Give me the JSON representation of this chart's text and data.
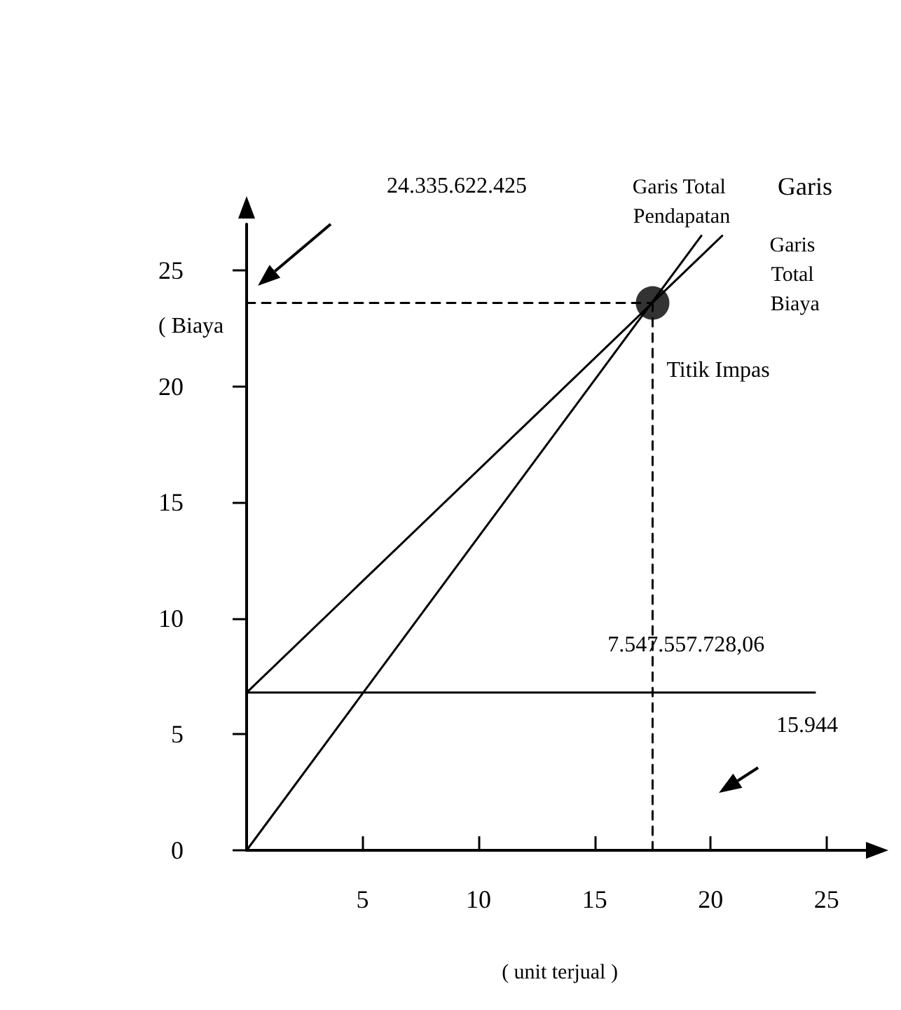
{
  "chart_data": {
    "type": "line",
    "xlabel": "( unit terjual )",
    "ylabel": "( Biaya",
    "xlim": [
      0,
      27
    ],
    "ylim": [
      0,
      27
    ],
    "xticks": [
      5,
      10,
      15,
      20,
      25
    ],
    "yticks": [
      0,
      5,
      10,
      15,
      20,
      25
    ],
    "grid": false,
    "marker": "none",
    "line_style": "solid",
    "series": [
      {
        "name": "Garis Total Pendapatan",
        "color": "#000000",
        "x": [
          0,
          19.6
        ],
        "values": [
          0,
          26.5
        ]
      },
      {
        "name": "Garis Total Biaya",
        "color": "#000000",
        "x": [
          0,
          20.5
        ],
        "values": [
          6.8,
          26.5
        ]
      },
      {
        "color": "#000000",
        "x": [
          0,
          24.5
        ],
        "values": [
          6.8,
          6.8
        ]
      },
      {
        "color": "#000000",
        "x": [
          0,
          17.5
        ],
        "values": [
          23.6,
          23.6
        ],
        "line_style": "dashed"
      },
      {
        "color": "#000000",
        "x": [
          17.5,
          17.5
        ],
        "values": [
          0,
          23.6
        ],
        "line_style": "dashed"
      },
      {
        "type": "scatter",
        "color": "#000000",
        "x": [
          17.5
        ],
        "values": [
          23.6
        ],
        "marker": "circle"
      }
    ],
    "annotations": [
      "Garis",
      "24.335.622.425",
      {
        "text": "Titik Impas",
        "x": 17.5,
        "y": 23.6
      },
      {
        "text": "7.547.557.728,06",
        "x": 24.5,
        "y": 6.8
      },
      "15.944"
    ]
  }
}
